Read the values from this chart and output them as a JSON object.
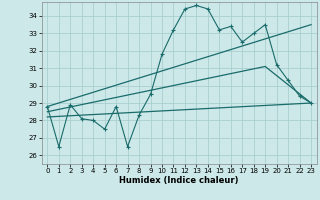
{
  "xlabel": "Humidex (Indice chaleur)",
  "xlim": [
    -0.5,
    23.5
  ],
  "ylim": [
    25.5,
    34.8
  ],
  "yticks": [
    26,
    27,
    28,
    29,
    30,
    31,
    32,
    33,
    34
  ],
  "xticks": [
    0,
    1,
    2,
    3,
    4,
    5,
    6,
    7,
    8,
    9,
    10,
    11,
    12,
    13,
    14,
    15,
    16,
    17,
    18,
    19,
    20,
    21,
    22,
    23
  ],
  "bg_color": "#cce8e8",
  "grid_color": "#aacfcf",
  "line_color": "#1a6b6b",
  "series1": {
    "x": [
      0,
      1,
      2,
      3,
      4,
      5,
      6,
      7,
      8,
      9,
      10,
      11,
      12,
      13,
      14,
      15,
      16,
      17,
      18,
      19,
      20,
      21,
      22,
      23
    ],
    "y": [
      28.8,
      26.5,
      28.9,
      28.1,
      28.0,
      27.5,
      28.8,
      26.5,
      28.3,
      29.5,
      31.8,
      33.2,
      34.4,
      34.6,
      34.4,
      33.2,
      33.4,
      32.5,
      33.0,
      33.5,
      31.2,
      30.3,
      29.4,
      29.0
    ]
  },
  "series2_x": [
    0,
    23
  ],
  "series2_y": [
    28.8,
    33.5
  ],
  "series3_x": [
    0,
    19,
    23
  ],
  "series3_y": [
    28.5,
    31.1,
    29.0
  ],
  "series4_x": [
    0,
    23
  ],
  "series4_y": [
    28.2,
    29.0
  ]
}
